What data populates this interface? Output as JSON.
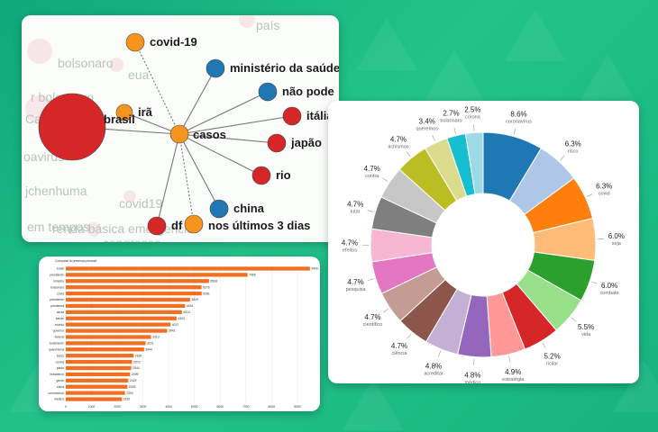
{
  "network": {
    "ghost_words": [
      "país",
      "bolsonaro",
      "eua",
      "r bolsonaro",
      "Ca paulo",
      "oavirus",
      "jchenhuma",
      "covid19",
      "renda básica emergencial",
      "em tempos",
      "congresso"
    ],
    "center": "casos",
    "nodes": [
      {
        "label": "covid-19",
        "color": "#f7941d"
      },
      {
        "label": "ministério da saúde",
        "color": "#1f77b4"
      },
      {
        "label": "não pode",
        "color": "#1f77b4"
      },
      {
        "label": "itália",
        "color": "#d62728"
      },
      {
        "label": "japão",
        "color": "#d62728"
      },
      {
        "label": "rio",
        "color": "#d62728"
      },
      {
        "label": "china",
        "color": "#1f77b4"
      },
      {
        "label": "nos últimos 3 dias",
        "color": "#f7941d"
      },
      {
        "label": "df",
        "color": "#d62728"
      },
      {
        "label": "irã",
        "color": "#f7941d"
      },
      {
        "label": "brasil",
        "color": "#d62728"
      }
    ],
    "center_color": "#f7941d"
  },
  "colors": {
    "bar": "#f26f21",
    "accent": "#f7941d"
  },
  "chart_data": [
    {
      "type": "bar",
      "title": "Comparar la presença pessoal",
      "categories": [
        "brasil",
        "presidente",
        "ministro",
        "bolsonaro",
        "covid",
        "presidente",
        "pandemia",
        "ainda",
        "saúde",
        "mundo",
        "governo",
        "federal",
        "isolamento",
        "quarentena",
        "todos",
        "contra",
        "paulo",
        "brasileiros",
        "gente",
        "china",
        "coronavírus",
        "médico"
      ],
      "values": [
        9490,
        7065,
        5568,
        5276,
        5281,
        4829,
        4634,
        4513,
        4303,
        4072,
        3941,
        3313,
        3101,
        3044,
        2639,
        2573,
        2544,
        2499,
        2429,
        2393,
        2300,
        2182
      ],
      "xlim": [
        0,
        9600
      ],
      "xticks": [
        0,
        1000,
        2000,
        3000,
        4000,
        5000,
        6000,
        7000,
        8000,
        9000
      ]
    },
    {
      "type": "pie",
      "slices": [
        {
          "label": "coronavírus",
          "value": 8.6,
          "color": "#1f77b4"
        },
        {
          "label": "risco",
          "value": 6.3,
          "color": "#aec7e8"
        },
        {
          "label": "covid",
          "value": 6.3,
          "color": "#ff7f0e"
        },
        {
          "label": "seja",
          "value": 6.0,
          "color": "#ffbb78"
        },
        {
          "label": "combate",
          "value": 6.0,
          "color": "#2ca02c"
        },
        {
          "label": "vida",
          "value": 5.5,
          "color": "#98df8a"
        },
        {
          "label": "ricilar",
          "value": 5.2,
          "color": "#d62728"
        },
        {
          "label": "estratégia",
          "value": 4.9,
          "color": "#ff9896"
        },
        {
          "label": "médico",
          "value": 4.8,
          "color": "#9467bd"
        },
        {
          "label": "acreditar",
          "value": 4.8,
          "color": "#c5b0d5"
        },
        {
          "label": "ciência",
          "value": 4.7,
          "color": "#8c564b"
        },
        {
          "label": "científico",
          "value": 4.7,
          "color": "#c49c94"
        },
        {
          "label": "pesquisa",
          "value": 4.7,
          "color": "#e377c2"
        },
        {
          "label": "efeitos",
          "value": 4.7,
          "color": "#f7b6d2"
        },
        {
          "label": "lutar",
          "value": 4.7,
          "color": "#7f7f7f"
        },
        {
          "label": "contra",
          "value": 4.7,
          "color": "#c7c7c7"
        },
        {
          "label": "achismos",
          "value": 4.7,
          "color": "#bcbd22"
        },
        {
          "label": "queremos",
          "value": 3.4,
          "color": "#dbdb8d"
        },
        {
          "label": "bolsonaro",
          "value": 2.7,
          "color": "#17becf"
        },
        {
          "label": "corona",
          "value": 2.5,
          "color": "#9edae5"
        }
      ]
    }
  ]
}
